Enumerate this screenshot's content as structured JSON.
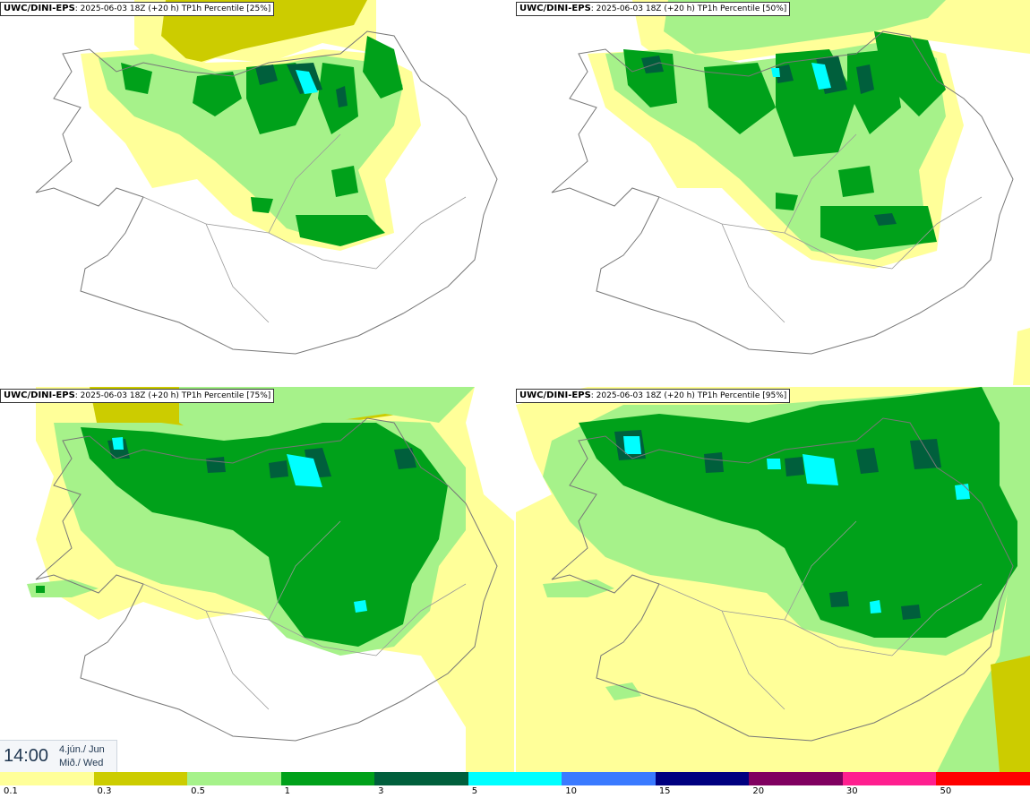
{
  "panels": [
    {
      "model": "UWC/DINI-EPS",
      "run": "2025-06-03 18Z (+20 h)",
      "product": "TP1h Percentile [25%]"
    },
    {
      "model": "UWC/DINI-EPS",
      "run": "2025-06-03 18Z (+20 h)",
      "product": "TP1h Percentile [50%]"
    },
    {
      "model": "UWC/DINI-EPS",
      "run": "2025-06-03 18Z (+20 h)",
      "product": "TP1h Percentile [75%]"
    },
    {
      "model": "UWC/DINI-EPS",
      "run": "2025-06-03 18Z (+20 h)",
      "product": "TP1h Percentile [95%]"
    }
  ],
  "time": {
    "hour": "14:00",
    "date_line1": "4.jún./ Jun",
    "date_line2": "Mið./ Wed"
  },
  "legend": {
    "labels": [
      "0.1",
      "0.3",
      "0.5",
      "1",
      "3",
      "5",
      "10",
      "15",
      "20",
      "30",
      "50"
    ],
    "colors": [
      "#ffff99",
      "#cccc00",
      "#a6f28a",
      "#00a11a",
      "#005f3c",
      "#00ffff",
      "#3a7aff",
      "#000080",
      "#800060",
      "#ff1f8f",
      "#ff0000"
    ]
  }
}
